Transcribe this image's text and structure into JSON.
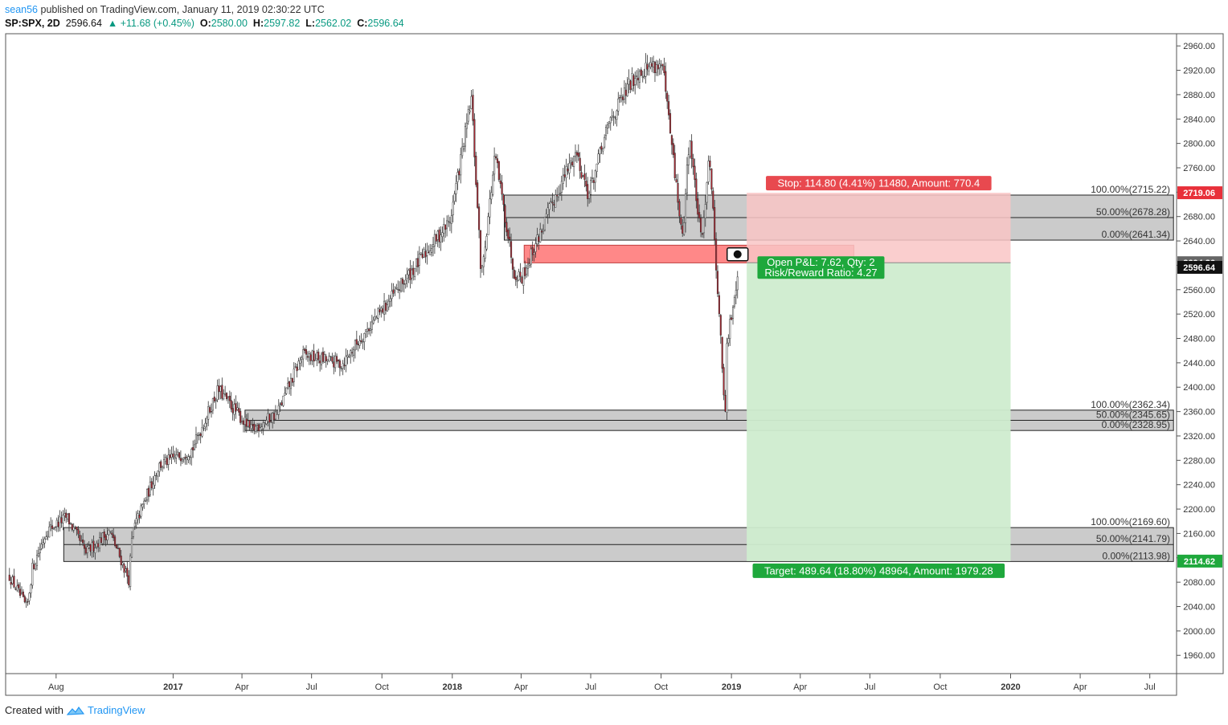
{
  "header": {
    "user": "sean56",
    "published": " published on TradingView.com, January 11, 2019 02:30:22 UTC",
    "symbol": "SP:SPX, 2D",
    "last": "2596.64",
    "change": "+11.68 (+0.45%)",
    "o_label": "O:",
    "o": "2580.00",
    "h_label": "H:",
    "h": "2597.82",
    "l_label": "L:",
    "l": "2562.02",
    "c_label": "C:",
    "c": "2596.64"
  },
  "footer": {
    "created": "Created with",
    "brand": "TradingView",
    "logo_icon": "tradingview-logo-icon"
  },
  "colors": {
    "up": "#ffffff",
    "down": "#b22833",
    "wick": "#333333",
    "zone": "#c8c8c8",
    "entry": "#ff7b7b",
    "stop": "#e8494f",
    "target": "#1ea83c",
    "profit_fill": "#cfeccf",
    "loss_fill": "#f9c6c6"
  },
  "chart_data": {
    "type": "candlestick",
    "title": "",
    "yrange": [
      1930,
      2980
    ],
    "xrange_dates": [
      "2016-05-27",
      "2020-08-05"
    ],
    "grid": false,
    "y_ticks": [
      "1960.00",
      "2000.00",
      "2040.00",
      "2080.00",
      "2120.00",
      "2160.00",
      "2200.00",
      "2240.00",
      "2280.00",
      "2320.00",
      "2360.00",
      "2400.00",
      "2440.00",
      "2480.00",
      "2520.00",
      "2560.00",
      "2600.00",
      "2640.00",
      "2680.00",
      "2720.00",
      "2760.00",
      "2800.00",
      "2840.00",
      "2880.00",
      "2920.00",
      "2960.00"
    ],
    "x_ticks": [
      {
        "label": "Aug",
        "date": "2016-08-01",
        "bold": false
      },
      {
        "label": "2017",
        "date": "2017-01-01",
        "bold": true
      },
      {
        "label": "Apr",
        "date": "2017-04-01",
        "bold": false
      },
      {
        "label": "Jul",
        "date": "2017-07-01",
        "bold": false
      },
      {
        "label": "Oct",
        "date": "2017-10-01",
        "bold": false
      },
      {
        "label": "2018",
        "date": "2018-01-01",
        "bold": true
      },
      {
        "label": "Apr",
        "date": "2018-04-01",
        "bold": false
      },
      {
        "label": "Jul",
        "date": "2018-07-01",
        "bold": false
      },
      {
        "label": "Oct",
        "date": "2018-10-01",
        "bold": false
      },
      {
        "label": "2019",
        "date": "2019-01-01",
        "bold": true
      },
      {
        "label": "Apr",
        "date": "2019-04-01",
        "bold": false
      },
      {
        "label": "Jul",
        "date": "2019-07-01",
        "bold": false
      },
      {
        "label": "Oct",
        "date": "2019-10-01",
        "bold": false
      },
      {
        "label": "2020",
        "date": "2020-01-01",
        "bold": true
      },
      {
        "label": "Apr",
        "date": "2020-04-01",
        "bold": false
      },
      {
        "label": "Jul",
        "date": "2020-07-01",
        "bold": false
      }
    ],
    "price_path": [
      [
        "2016-06-01",
        2090
      ],
      [
        "2016-06-24",
        2037
      ],
      [
        "2016-07-01",
        2103
      ],
      [
        "2016-07-20",
        2165
      ],
      [
        "2016-08-15",
        2187
      ],
      [
        "2016-09-09",
        2128
      ],
      [
        "2016-10-10",
        2164
      ],
      [
        "2016-11-04",
        2084
      ],
      [
        "2016-11-09",
        2163
      ],
      [
        "2016-12-13",
        2271
      ],
      [
        "2017-01-26",
        2298
      ],
      [
        "2017-03-01",
        2396
      ],
      [
        "2017-04-13",
        2329
      ],
      [
        "2017-05-17",
        2357
      ],
      [
        "2017-06-19",
        2453
      ],
      [
        "2017-08-10",
        2438
      ],
      [
        "2017-09-01",
        2477
      ],
      [
        "2017-10-30",
        2574
      ],
      [
        "2017-12-29",
        2673
      ],
      [
        "2018-01-26",
        2873
      ],
      [
        "2018-02-08",
        2581
      ],
      [
        "2018-02-26",
        2780
      ],
      [
        "2018-03-23",
        2588
      ],
      [
        "2018-04-02",
        2581
      ],
      [
        "2018-05-15",
        2711
      ],
      [
        "2018-06-12",
        2787
      ],
      [
        "2018-06-28",
        2716
      ],
      [
        "2018-07-26",
        2837
      ],
      [
        "2018-08-29",
        2914
      ],
      [
        "2018-09-20",
        2930
      ],
      [
        "2018-10-03",
        2925
      ],
      [
        "2018-10-29",
        2641
      ],
      [
        "2018-11-07",
        2813
      ],
      [
        "2018-11-23",
        2632
      ],
      [
        "2018-12-03",
        2790
      ],
      [
        "2018-12-24",
        2351
      ],
      [
        "2018-12-26",
        2467
      ],
      [
        "2019-01-10",
        2596
      ]
    ],
    "zones": [
      {
        "top": 2715.22,
        "mid": 2678.28,
        "bot": 2641.34,
        "x_start": "2018-03-10",
        "labels": [
          "100.00%(2715.22)",
          "50.00%(2678.28)",
          "0.00%(2641.34)"
        ]
      },
      {
        "top": 2362.34,
        "mid": 2345.65,
        "bot": 2328.95,
        "x_start": "2017-04-05",
        "labels": [
          "100.00%(2362.34)",
          "50.00%(2345.65)",
          "0.00%(2328.95)"
        ]
      },
      {
        "top": 2169.6,
        "mid": 2141.79,
        "bot": 2113.98,
        "x_start": "2016-08-11",
        "labels": [
          "100.00%(2169.60)",
          "50.00%(2141.79)",
          "0.00%(2113.98)"
        ]
      }
    ],
    "zones_x_end": "2020-08-01",
    "entry_zone": {
      "top": 2633,
      "bot": 2604,
      "x_start": "2018-04-05",
      "x_end": "2019-06-10"
    },
    "position": {
      "type": "short",
      "x_start": "2019-01-21",
      "x_end": "2020-01-01",
      "entry": 2604.26,
      "stop": 2719.06,
      "target": 2114.62,
      "stop_label": "Stop: 114.80 (4.41%) 11480, Amount: 770.4",
      "target_label": "Target: 489.64 (18.80%) 48964, Amount: 1979.28",
      "pnl_label": "Open P&L: 7.62, Qty: 2",
      "rr_label": "Risk/Reward Ratio: 4.27"
    },
    "price_badges": [
      {
        "label": "2719.06",
        "price": 2719.06,
        "color": "#e8303a"
      },
      {
        "label": "2604.26",
        "price": 2604.26,
        "color": "#666666"
      },
      {
        "label": "2596.64",
        "price": 2596.64,
        "color": "#111111"
      },
      {
        "label": "2114.62",
        "price": 2114.62,
        "color": "#1ea83c"
      }
    ]
  }
}
